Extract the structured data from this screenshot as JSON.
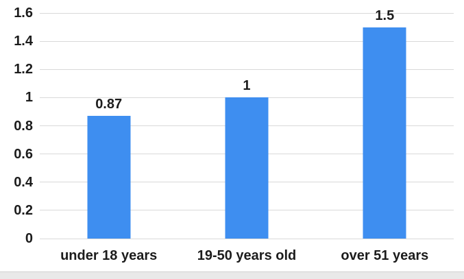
{
  "chart_data": {
    "type": "bar",
    "title": "",
    "xlabel": "",
    "ylabel": "",
    "categories": [
      "under 18 years",
      "19-50 years old",
      "over 51 years"
    ],
    "values": [
      0.87,
      1,
      1.5
    ],
    "value_labels": [
      "0.87",
      "1",
      "1.5"
    ],
    "ylim": [
      0,
      1.6
    ],
    "yticks": [
      0,
      0.2,
      0.4,
      0.6,
      0.8,
      1,
      1.2,
      1.4,
      1.6
    ],
    "ytick_labels": [
      "0",
      "0.2",
      "0.4",
      "0.6",
      "0.8",
      "1",
      "1.2",
      "1.4",
      "1.6"
    ],
    "grid": true,
    "legend": false,
    "colors": {
      "bar": "#3e8ef0",
      "gridline": "#d9d9d9",
      "text": "#1c1c1c",
      "background": "#ffffff",
      "bottom_strip": "#e9e9e9"
    }
  }
}
